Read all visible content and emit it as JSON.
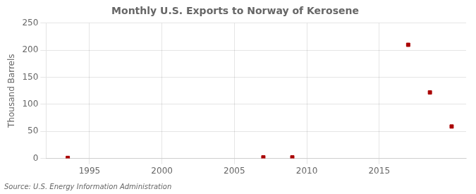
{
  "chart_data": {
    "type": "scatter",
    "title": "Monthly U.S. Exports to Norway of Kerosene",
    "ylabel": "Thousand Barrels",
    "annotations": [
      "Source: U.S. Energy Information Administration"
    ],
    "x": [
      1993.5,
      2007.0,
      2009.0,
      2017.0,
      2018.5,
      2020.0
    ],
    "values": [
      1,
      2,
      2,
      210,
      122,
      59
    ],
    "color": "#aa0000",
    "marker": "square",
    "xlim": [
      1992,
      2021
    ],
    "xticks": [
      1995,
      2000,
      2005,
      2010,
      2015
    ],
    "ylim": [
      0,
      250
    ],
    "yticks": [
      0,
      50,
      100,
      150,
      200,
      250
    ],
    "grid": true
  }
}
